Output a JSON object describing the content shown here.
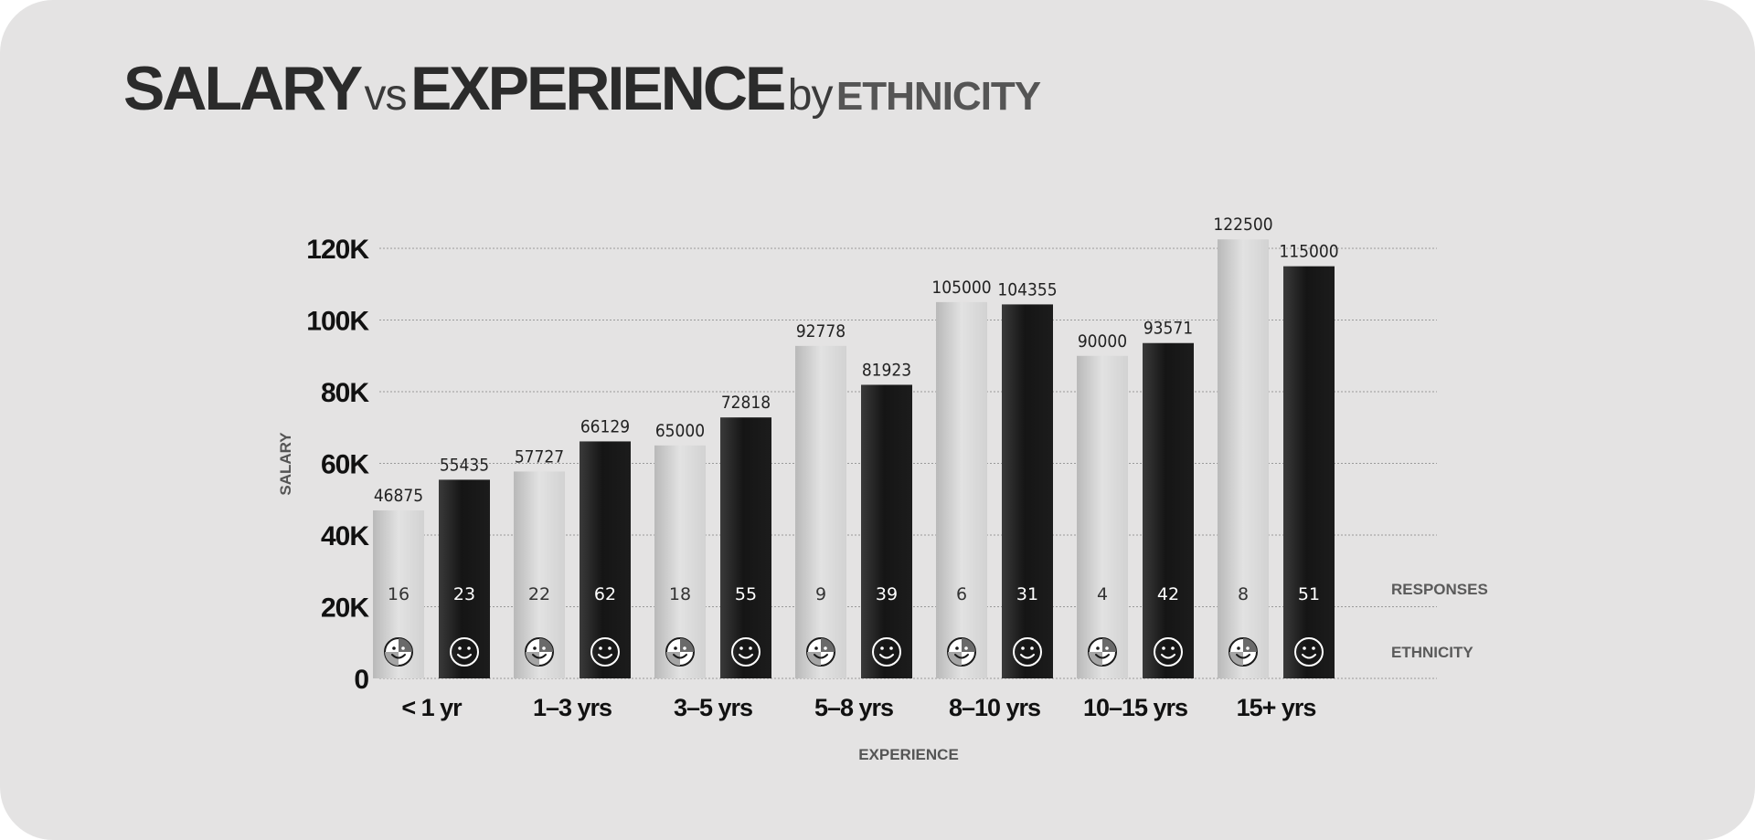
{
  "title": {
    "part1": "SALARY",
    "part2": "vs",
    "part3": "EXPERIENCE",
    "part4": "by",
    "part5": "ETHNICITY"
  },
  "side_labels": {
    "responses": "RESPONSES",
    "ethnicity": "ETHNICITY"
  },
  "colors": {
    "light_series": "#d0d0d0",
    "dark_series": "#1a1a1a",
    "background": "#e4e3e3",
    "gridline": "#9a9a9a"
  },
  "icons": {
    "light_series": "half-shaded-smiley-face-icon",
    "dark_series": "smiley-face-icon"
  },
  "chart_data": {
    "type": "bar",
    "title": "SALARY vs EXPERIENCE by ETHNICITY",
    "xlabel": "EXPERIENCE",
    "ylabel": "SALARY",
    "ylim": [
      0,
      120000
    ],
    "y_ticks": [
      0,
      20000,
      40000,
      60000,
      80000,
      100000,
      120000
    ],
    "y_tick_labels": [
      "0",
      "20K",
      "40K",
      "60K",
      "80K",
      "100K",
      "120K"
    ],
    "grid": true,
    "categories": [
      "< 1 yr",
      "1–3 yrs",
      "3–5 yrs",
      "5–8 yrs",
      "8–10 yrs",
      "10–15 yrs",
      "15+ yrs"
    ],
    "series": [
      {
        "values": [
          46875,
          57727,
          65000,
          92778,
          105000,
          90000,
          122500
        ],
        "responses": [
          16,
          22,
          18,
          9,
          6,
          4,
          8
        ]
      },
      {
        "values": [
          55435,
          66129,
          72818,
          81923,
          104355,
          93571,
          115000
        ],
        "responses": [
          23,
          62,
          55,
          39,
          31,
          42,
          51
        ]
      }
    ]
  }
}
